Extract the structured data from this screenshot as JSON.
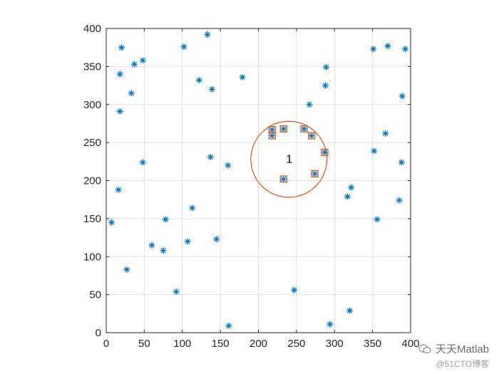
{
  "chart_data": {
    "type": "scatter",
    "xlim": [
      0,
      400
    ],
    "ylim": [
      0,
      400
    ],
    "xticks": [
      0,
      50,
      100,
      150,
      200,
      250,
      300,
      350,
      400
    ],
    "yticks": [
      0,
      50,
      100,
      150,
      200,
      250,
      300,
      350,
      400
    ],
    "grid": true,
    "series": [
      {
        "marker": "asterisk",
        "color": "#0072BD",
        "points": [
          [
            20,
            375
          ],
          [
            18,
            340
          ],
          [
            37,
            353
          ],
          [
            48,
            358
          ],
          [
            18,
            291
          ],
          [
            33,
            315
          ],
          [
            7,
            145
          ],
          [
            16,
            188
          ],
          [
            48,
            224
          ],
          [
            27,
            83
          ],
          [
            60,
            115
          ],
          [
            75,
            108
          ],
          [
            78,
            149
          ],
          [
            92,
            54
          ],
          [
            102,
            376
          ],
          [
            107,
            120
          ],
          [
            113,
            164
          ],
          [
            122,
            332
          ],
          [
            133,
            392
          ],
          [
            139,
            320
          ],
          [
            137,
            231
          ],
          [
            145,
            123
          ],
          [
            160,
            220
          ],
          [
            161,
            9
          ],
          [
            179,
            336
          ],
          [
            218,
            267
          ],
          [
            218,
            259
          ],
          [
            233,
            268
          ],
          [
            233,
            202
          ],
          [
            260,
            268
          ],
          [
            270,
            259
          ],
          [
            274,
            209
          ],
          [
            287,
            237
          ],
          [
            267,
            300
          ],
          [
            288,
            325
          ],
          [
            289,
            349
          ],
          [
            247,
            56
          ],
          [
            294,
            11
          ],
          [
            317,
            179
          ],
          [
            322,
            191
          ],
          [
            320,
            29
          ],
          [
            351,
            373
          ],
          [
            352,
            239
          ],
          [
            356,
            149
          ],
          [
            367,
            262
          ],
          [
            370,
            377
          ],
          [
            385,
            174
          ],
          [
            388,
            224
          ],
          [
            389,
            311
          ],
          [
            393,
            373
          ]
        ]
      },
      {
        "marker": "square",
        "color": "#D95319",
        "points": [
          [
            218,
            267
          ],
          [
            218,
            259
          ],
          [
            233,
            268
          ],
          [
            233,
            202
          ],
          [
            260,
            268
          ],
          [
            270,
            259
          ],
          [
            274,
            209
          ],
          [
            287,
            237
          ]
        ]
      }
    ],
    "circles": [
      {
        "center": [
          240,
          228
        ],
        "radius": 50,
        "color": "#D95319"
      }
    ],
    "annotations": [
      {
        "text": "1",
        "x": 240,
        "y": 228
      }
    ]
  },
  "watermark": {
    "title": "天天Matlab",
    "subtitle": "@51CTO博客"
  }
}
